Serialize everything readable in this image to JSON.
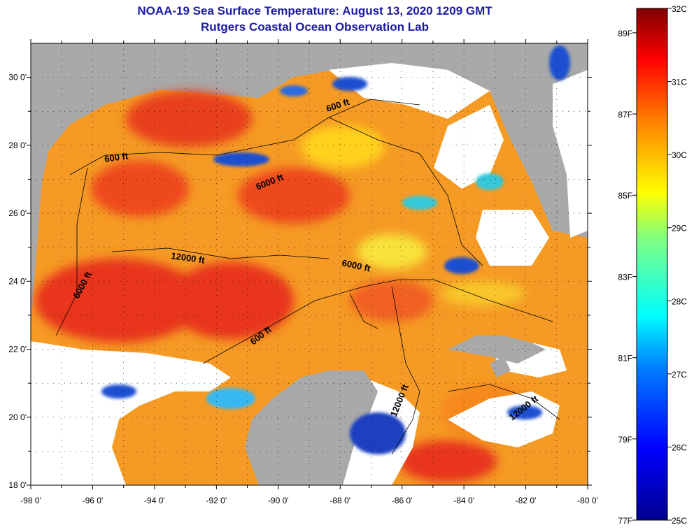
{
  "title": {
    "line1": "NOAA-19 Sea Surface Temperature:  August 13, 2020 1209 GMT",
    "line2": "Rutgers Coastal Ocean Observation Lab"
  },
  "map": {
    "lon_range": [
      -98,
      -80
    ],
    "lat_range": [
      18,
      31
    ],
    "x_ticks": [
      "-98 0'",
      "-96 0'",
      "-94 0'",
      "-92 0'",
      "-90 0'",
      "-88 0'",
      "-86 0'",
      "-84 0'",
      "-82 0'",
      "-80 0'"
    ],
    "y_ticks": [
      "18 0'",
      "20 0'",
      "22 0'",
      "24 0'",
      "26 0'",
      "28 0'",
      "30 0'"
    ],
    "contour_labels": [
      "600 ft",
      "600 ft",
      "6000 ft",
      "12000 ft",
      "6000 ft",
      "6000 ft",
      "600 ft",
      "12000 ft",
      "12000 ft"
    ],
    "colors": {
      "land": "#a9a9a9",
      "cloud": "#ffffff",
      "warm": "#ee3a1a",
      "orange": "#f7801c",
      "cool": "#1565c0"
    }
  },
  "colorbar": {
    "celsius": [
      "32C",
      "31C",
      "30C",
      "29C",
      "28C",
      "27C",
      "26C",
      "25C"
    ],
    "fahrenheit": [
      "89F",
      "87F",
      "85F",
      "83F",
      "81F",
      "79F",
      "77F"
    ],
    "range_c": [
      25,
      32
    ]
  }
}
